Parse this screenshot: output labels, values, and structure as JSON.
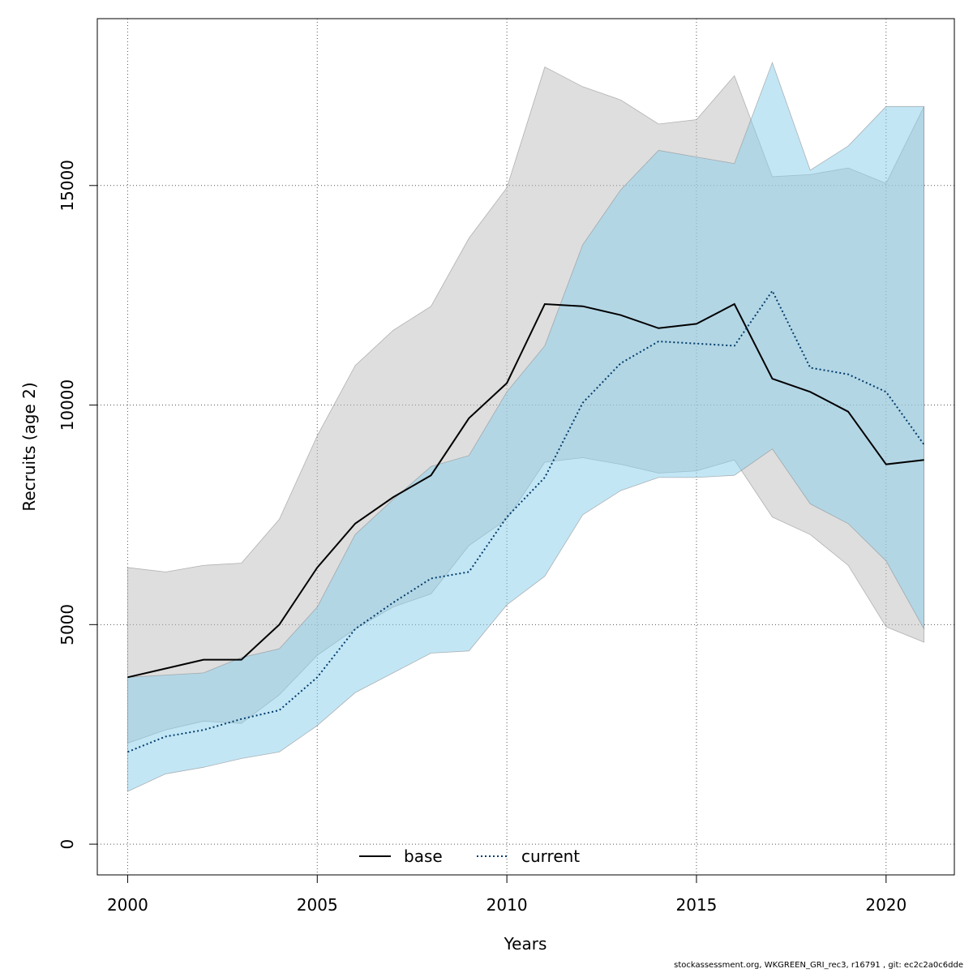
{
  "chart_data": {
    "type": "line",
    "xlabel": "Years",
    "ylabel": "Recruits (age 2)",
    "xlim": [
      1999.2,
      2021.8
    ],
    "ylim": [
      -700,
      18800
    ],
    "xticks": [
      2000,
      2005,
      2010,
      2015,
      2020
    ],
    "yticks": [
      0,
      5000,
      10000,
      15000
    ],
    "grid": true,
    "legend": {
      "position": "bottom-center",
      "entries": [
        "base",
        "current"
      ]
    },
    "x": [
      2000,
      2001,
      2002,
      2003,
      2004,
      2005,
      2006,
      2007,
      2008,
      2009,
      2010,
      2011,
      2012,
      2013,
      2014,
      2015,
      2016,
      2017,
      2018,
      2019,
      2020,
      2021
    ],
    "series": [
      {
        "name": "base",
        "style": "solid",
        "line_color": "#000000",
        "band_color": "#bebebe",
        "values": [
          3800,
          4000,
          4200,
          4200,
          5000,
          6300,
          7300,
          7900,
          8400,
          9700,
          10500,
          12300,
          12250,
          12050,
          11750,
          11850,
          12300,
          10600,
          10300,
          9850,
          8650,
          8750
        ],
        "lower": [
          2300,
          2600,
          2800,
          2750,
          3400,
          4300,
          4900,
          5400,
          5700,
          6800,
          7400,
          8700,
          8800,
          8650,
          8450,
          8500,
          8750,
          7450,
          7050,
          6350,
          4950,
          4600
        ],
        "upper": [
          6300,
          6200,
          6350,
          6400,
          7400,
          9300,
          10900,
          11700,
          12250,
          13800,
          14950,
          17700,
          17250,
          16950,
          16400,
          16500,
          17500,
          15200,
          15250,
          15400,
          15050,
          16800
        ]
      },
      {
        "name": "current",
        "style": "dotted",
        "line_color": "#003d6b",
        "band_color": "#87ceeb",
        "values": [
          2100,
          2450,
          2600,
          2850,
          3050,
          3800,
          4900,
          5500,
          6050,
          6200,
          7450,
          8350,
          10050,
          10950,
          11450,
          11400,
          11350,
          12600,
          10850,
          10700,
          10300,
          9100
        ],
        "lower": [
          1200,
          1600,
          1750,
          1950,
          2100,
          2700,
          3450,
          3900,
          4350,
          4400,
          5450,
          6100,
          7500,
          8050,
          8350,
          8350,
          8400,
          9000,
          7750,
          7300,
          6450,
          4900
        ],
        "upper": [
          3800,
          3850,
          3900,
          4250,
          4450,
          5400,
          7050,
          7850,
          8600,
          8850,
          10300,
          11350,
          13650,
          14900,
          15800,
          15650,
          15500,
          17800,
          15350,
          15900,
          16800,
          16800
        ]
      }
    ]
  },
  "footer": {
    "note": "stockassessment.org, WKGREEN_GRI_rec3, r16791 , git: ec2c2a0c6dde"
  }
}
